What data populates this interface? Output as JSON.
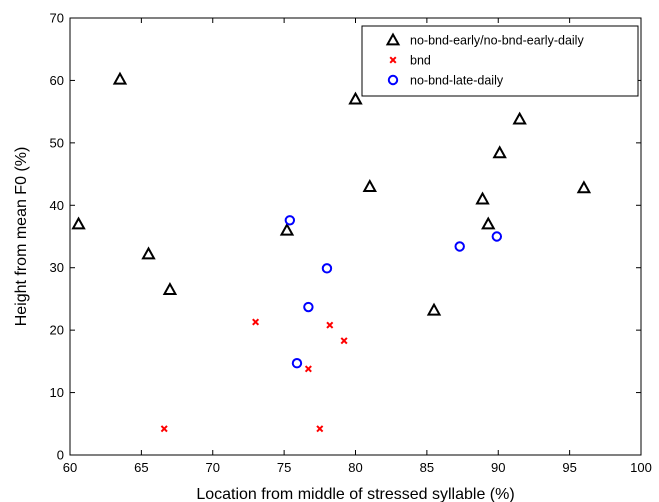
{
  "chart_data": {
    "type": "scatter",
    "xlabel": "Location from middle of stressed syllable (%)",
    "ylabel": "Height from mean F0 (%)",
    "xlim": [
      60,
      100
    ],
    "ylim": [
      0,
      70
    ],
    "xticks": [
      60,
      65,
      70,
      75,
      80,
      85,
      90,
      95,
      100
    ],
    "yticks": [
      0,
      10,
      20,
      30,
      40,
      50,
      60,
      70
    ],
    "grid": false,
    "legend_position": "top-right",
    "series": [
      {
        "name": "no-bnd-early/no-bnd-early-daily",
        "marker": "triangle",
        "color": "#000000",
        "points": [
          {
            "x": 60.6,
            "y": 37.0
          },
          {
            "x": 63.5,
            "y": 60.2
          },
          {
            "x": 65.5,
            "y": 32.2
          },
          {
            "x": 67.0,
            "y": 26.5
          },
          {
            "x": 75.2,
            "y": 36.0
          },
          {
            "x": 80.0,
            "y": 57.0
          },
          {
            "x": 81.0,
            "y": 43.0
          },
          {
            "x": 85.5,
            "y": 23.2
          },
          {
            "x": 88.9,
            "y": 41.0
          },
          {
            "x": 89.3,
            "y": 37.0
          },
          {
            "x": 90.1,
            "y": 48.4
          },
          {
            "x": 91.5,
            "y": 53.8
          },
          {
            "x": 96.0,
            "y": 42.8
          }
        ]
      },
      {
        "name": "bnd",
        "marker": "x",
        "color": "#ff0000",
        "points": [
          {
            "x": 66.6,
            "y": 4.2
          },
          {
            "x": 73.0,
            "y": 21.3
          },
          {
            "x": 76.7,
            "y": 13.8
          },
          {
            "x": 77.5,
            "y": 4.2
          },
          {
            "x": 78.2,
            "y": 20.8
          },
          {
            "x": 79.2,
            "y": 18.3
          }
        ]
      },
      {
        "name": "no-bnd-late-daily",
        "marker": "circle",
        "color": "#0000ff",
        "points": [
          {
            "x": 75.4,
            "y": 37.6
          },
          {
            "x": 75.9,
            "y": 14.7
          },
          {
            "x": 76.7,
            "y": 23.7
          },
          {
            "x": 78.0,
            "y": 29.9
          },
          {
            "x": 87.3,
            "y": 33.4
          },
          {
            "x": 89.9,
            "y": 35.0
          }
        ]
      }
    ]
  }
}
